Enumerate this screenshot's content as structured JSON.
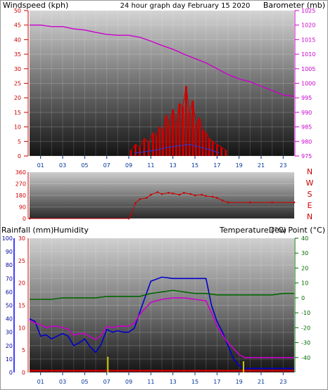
{
  "header": {
    "windspeed_label": "Windspeed (kph)",
    "title": "24 hour graph day   February 15 2020",
    "barometer_label": "Barometer (mb)"
  },
  "colors": {
    "windspeed": "#cc0000",
    "title": "#ffcc00",
    "barometer": "#cc00cc",
    "rainfall": "#cc0000",
    "humidity": "#000099",
    "temperature": "#006600",
    "dewpoint": "#cc00cc",
    "compass": "#cc0000"
  },
  "time_ticks": [
    "01",
    "03",
    "05",
    "07",
    "09",
    "11",
    "13",
    "15",
    "17",
    "19",
    "21",
    "23"
  ],
  "compass_letters": [
    "N",
    "W",
    "S",
    "E",
    "N"
  ],
  "lower_labels": {
    "rainfall": "Rainfall (mm)",
    "humidity": "Humidity",
    "temperature": "Temperature (°C)",
    "dewpoint": "Dew Point (°C)"
  },
  "chart_data": [
    {
      "type": "line",
      "panel": "wind_baro",
      "title": "24 hour graph day   February 15 2020",
      "x_unit": "hour",
      "left_axis": {
        "label": "Windspeed (kph)",
        "range": [
          0,
          50
        ],
        "ticks": [
          0,
          5,
          10,
          15,
          20,
          25,
          30,
          35,
          40,
          45,
          50
        ]
      },
      "right_axis": {
        "label": "Barometer (mb)",
        "range": [
          975,
          1025
        ],
        "ticks": [
          975,
          980,
          985,
          990,
          995,
          1000,
          1005,
          1010,
          1015,
          1020,
          1025
        ]
      },
      "series": [
        {
          "name": "Barometer (mb)",
          "axis": "right",
          "color": "#cc00cc",
          "x": [
            0,
            1,
            2,
            3,
            4,
            5,
            6,
            7,
            8,
            9,
            10,
            11,
            12,
            13,
            14,
            15,
            16,
            17,
            18,
            19,
            20,
            21,
            22,
            23,
            24
          ],
          "y": [
            1020,
            1020,
            1019.5,
            1019.5,
            1018.7,
            1018.3,
            1017.5,
            1016.8,
            1016.5,
            1016.5,
            1015.8,
            1014.5,
            1013,
            1011.7,
            1010,
            1008.5,
            1007,
            1005,
            1003,
            1001.5,
            1000.5,
            999,
            997.5,
            996,
            995.5
          ]
        },
        {
          "name": "Windspeed (kph)",
          "axis": "left",
          "color": "#cc0000",
          "x": [
            9.2,
            9.6,
            10,
            10.4,
            10.8,
            11.2,
            11.5,
            11.8,
            12.1,
            12.4,
            12.7,
            13,
            13.3,
            13.6,
            13.9,
            14.2,
            14.5,
            14.8,
            15.1,
            15.4,
            15.7,
            16,
            16.3,
            16.6,
            17,
            17.4,
            17.8
          ],
          "y": [
            2,
            4,
            3,
            6,
            5,
            8,
            7,
            10,
            9,
            14,
            11,
            16,
            12,
            18,
            17,
            24,
            15,
            19,
            11,
            13,
            9,
            8,
            6,
            5,
            4,
            3,
            2
          ]
        },
        {
          "name": "Wind average",
          "axis": "left",
          "color": "#3333cc",
          "x": [
            9.5,
            10.5,
            11.5,
            12.5,
            13.5,
            14.5,
            15.5,
            16.5,
            17.2
          ],
          "y": [
            1,
            1.5,
            2,
            3,
            3.5,
            4,
            3,
            2,
            1
          ]
        }
      ]
    },
    {
      "type": "scatter",
      "panel": "wind_direction",
      "axis": {
        "range": [
          0,
          360
        ],
        "ticks": [
          0,
          90,
          180,
          270,
          360
        ]
      },
      "color": "#cc0000",
      "series": [
        {
          "name": "Wind direction",
          "x": [
            0,
            9,
            9.2,
            9.6,
            10,
            10.6,
            11,
            11.6,
            12,
            12.6,
            13,
            13.6,
            14,
            14.6,
            15,
            15.6,
            16,
            16.6,
            17,
            17.5,
            18,
            20,
            22,
            24
          ],
          "y": [
            0,
            0,
            30,
            120,
            150,
            160,
            185,
            205,
            190,
            200,
            195,
            185,
            200,
            190,
            180,
            185,
            175,
            170,
            160,
            140,
            125,
            125,
            125,
            125
          ]
        }
      ]
    },
    {
      "type": "line",
      "panel": "rain_humidity_temp",
      "axes": {
        "humidity": {
          "label": "Humidity",
          "range": [
            0,
            100
          ],
          "ticks": [
            0,
            10,
            20,
            30,
            40,
            50,
            60,
            70,
            80,
            90,
            100
          ]
        },
        "rainfall": {
          "label": "Rainfall (mm)",
          "range": [
            0,
            30
          ],
          "ticks": [
            0,
            5,
            10,
            15,
            20,
            25,
            30
          ]
        },
        "temperature": {
          "label": "Temperature (°C)",
          "range": [
            -50,
            40
          ],
          "ticks": [
            -40,
            -30,
            -20,
            -10,
            0,
            10,
            20,
            30,
            40
          ]
        }
      },
      "series": [
        {
          "name": "Humidity",
          "axis": "humidity",
          "color": "#0000cc",
          "x": [
            0,
            0.5,
            1,
            1.5,
            2,
            2.5,
            3,
            3.5,
            4,
            4.5,
            5,
            5.5,
            6,
            6.5,
            7,
            7.5,
            8,
            8.5,
            9,
            9.5,
            10,
            11,
            12,
            13,
            14,
            15,
            16,
            16.5,
            17,
            17.5,
            18,
            18.5,
            19,
            19.5,
            20,
            21,
            22,
            23,
            24
          ],
          "y": [
            40,
            38,
            27,
            28,
            25,
            27,
            29,
            27,
            20,
            22,
            25,
            19,
            15,
            21,
            32,
            30,
            31,
            30,
            30,
            33,
            45,
            68,
            71,
            70,
            70,
            70,
            70,
            50,
            38,
            30,
            20,
            10,
            5,
            3,
            3,
            3,
            3,
            3,
            3
          ]
        },
        {
          "name": "Dew Point (°C)",
          "axis": "temperature",
          "color": "#cc00cc",
          "x": [
            0,
            0.5,
            1,
            1.5,
            2,
            2.5,
            3,
            3.5,
            4,
            4.5,
            5,
            5.5,
            6,
            6.5,
            7,
            7.5,
            8,
            8.5,
            9,
            9.5,
            10,
            11,
            12,
            13,
            14,
            15,
            16,
            16.5,
            17,
            17.5,
            18,
            18.5,
            19,
            19.5,
            20,
            21,
            22,
            23,
            24
          ],
          "y": [
            -15,
            -17,
            -18,
            -20,
            -19,
            -19,
            -20,
            -21,
            -25,
            -24,
            -24,
            -26,
            -28,
            -25,
            -19,
            -20,
            -19,
            -19,
            -19,
            -17,
            -11,
            -3,
            -1,
            0,
            0,
            -1,
            -2,
            -10,
            -19,
            -25,
            -30,
            -34,
            -38,
            -40,
            -40,
            -40,
            -40,
            -40,
            -40
          ]
        },
        {
          "name": "Temperature (°C)",
          "axis": "temperature",
          "color": "#006600",
          "x": [
            0,
            1,
            2,
            3,
            4,
            5,
            6,
            7,
            8,
            9,
            10,
            11,
            12,
            13,
            14,
            15,
            16,
            17,
            18,
            19,
            20,
            21,
            22,
            23,
            24
          ],
          "y": [
            -1,
            -1,
            -1,
            0,
            0,
            0,
            0,
            1,
            1,
            1,
            1,
            3,
            4,
            5,
            4,
            3,
            3,
            2,
            2,
            2,
            2,
            2,
            2,
            3,
            3
          ]
        },
        {
          "name": "Rainfall (mm)",
          "axis": "rainfall",
          "color": "#cc0000",
          "x": [
            0,
            24
          ],
          "y": [
            0.4,
            0.4
          ]
        }
      ],
      "bars": {
        "name": "Rain rate",
        "color": "#cccc00",
        "x": [
          7.1,
          19.4
        ],
        "y": [
          3.5,
          2.5
        ]
      }
    }
  ]
}
